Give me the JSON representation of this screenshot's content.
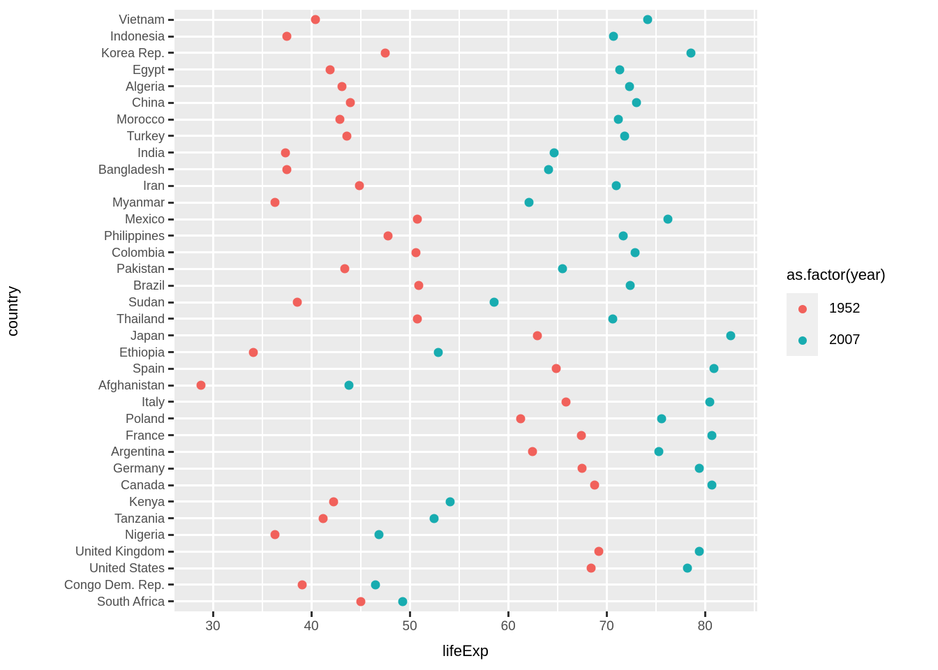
{
  "chart_data": {
    "type": "scatter",
    "subtype": "cleveland-dot-plot",
    "title": "",
    "xlabel": "lifeExp",
    "ylabel": "country",
    "xlim": [
      26.1,
      85.3
    ],
    "x_major_ticks": [
      30,
      40,
      50,
      60,
      70,
      80
    ],
    "x_minor_gridlines": [
      35,
      45,
      55,
      65,
      75,
      85
    ],
    "grid": true,
    "panel_background": "#EBEBEB",
    "gridline_color": "#FFFFFF",
    "tick_color": "#333333",
    "axis_text_color": "#4D4D4D",
    "legend_position": "right",
    "legend_title": "as.factor(year)",
    "categories": [
      "Vietnam",
      "Indonesia",
      "Korea Rep.",
      "Egypt",
      "Algeria",
      "China",
      "Morocco",
      "Turkey",
      "India",
      "Bangladesh",
      "Iran",
      "Myanmar",
      "Mexico",
      "Philippines",
      "Colombia",
      "Pakistan",
      "Brazil",
      "Sudan",
      "Thailand",
      "Japan",
      "Ethiopia",
      "Spain",
      "Afghanistan",
      "Italy",
      "Poland",
      "France",
      "Argentina",
      "Germany",
      "Canada",
      "Kenya",
      "Tanzania",
      "Nigeria",
      "United Kingdom",
      "United States",
      "Congo Dem. Rep.",
      "South Africa"
    ],
    "series": [
      {
        "name": "1952",
        "color": "#F1615B",
        "values": [
          40.4,
          37.5,
          47.5,
          41.9,
          43.1,
          44.0,
          42.9,
          43.6,
          37.4,
          37.5,
          44.9,
          36.3,
          50.8,
          47.8,
          50.6,
          43.4,
          50.9,
          38.6,
          50.8,
          63.0,
          34.1,
          64.9,
          28.8,
          65.9,
          61.3,
          67.4,
          62.5,
          67.5,
          68.8,
          42.3,
          41.2,
          36.3,
          69.2,
          68.4,
          39.1,
          45.0
        ]
      },
      {
        "name": "2007",
        "color": "#18ACB0",
        "values": [
          74.2,
          70.7,
          78.6,
          71.3,
          72.3,
          73.0,
          71.2,
          71.8,
          64.7,
          64.1,
          71.0,
          62.1,
          76.2,
          71.7,
          72.9,
          65.5,
          72.4,
          58.6,
          70.6,
          82.6,
          52.9,
          80.9,
          43.8,
          80.5,
          75.6,
          80.7,
          75.3,
          79.4,
          80.7,
          54.1,
          52.5,
          46.9,
          79.4,
          78.2,
          46.5,
          49.3
        ]
      }
    ]
  }
}
